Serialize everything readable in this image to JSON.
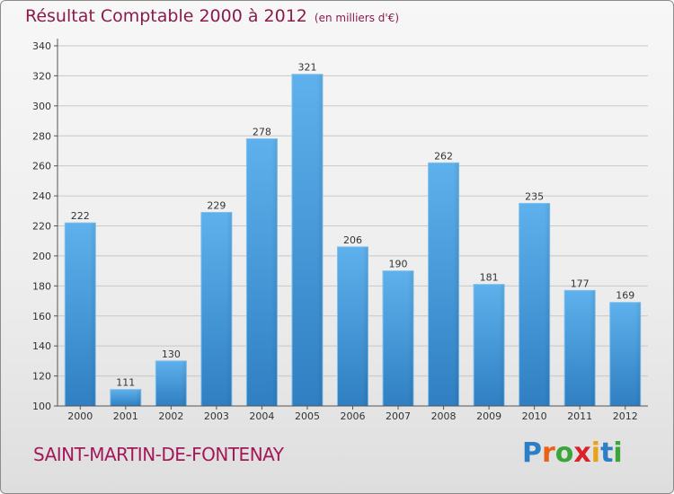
{
  "title": "Résultat Comptable 2000 à 2012",
  "unit_note": "(en milliers d'€)",
  "commune": "SAINT-MARTIN-DE-FONTENAY",
  "logo": {
    "text": "Proxiti",
    "letter_colors": [
      "#2c7fc6",
      "#e8621a",
      "#3aa63a",
      "#d9232a",
      "#e8a21a",
      "#2c7fc6",
      "#3aa63a"
    ]
  },
  "colors": {
    "bar": "#4a9fdf",
    "title": "#8a1b4b",
    "commune": "#a3185a"
  },
  "chart_data": {
    "type": "bar",
    "categories": [
      "2000",
      "2001",
      "2002",
      "2003",
      "2004",
      "2005",
      "2006",
      "2007",
      "2008",
      "2009",
      "2010",
      "2011",
      "2012"
    ],
    "values": [
      222,
      111,
      130,
      229,
      278,
      321,
      206,
      190,
      262,
      181,
      235,
      177,
      169
    ],
    "ylim": [
      100,
      340
    ],
    "yticks": [
      100,
      120,
      140,
      160,
      180,
      200,
      220,
      240,
      260,
      280,
      300,
      320,
      340
    ],
    "grid": true,
    "title": "Résultat Comptable 2000 à 2012",
    "xlabel": "",
    "ylabel": ""
  }
}
